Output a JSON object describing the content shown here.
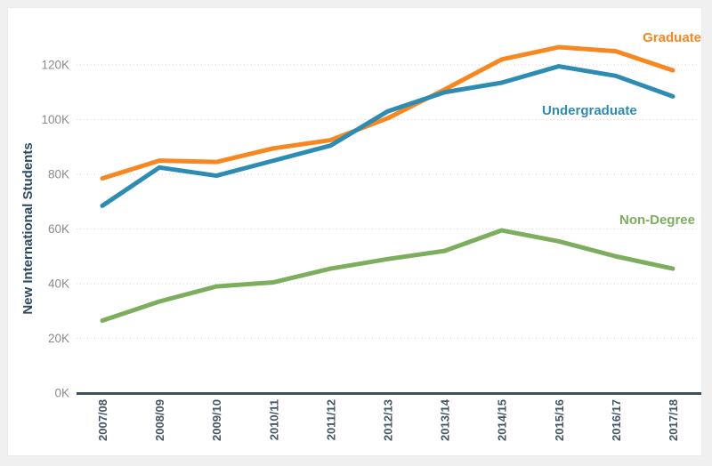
{
  "window": {
    "background": "#f0f0f0",
    "panel_background": "#ffffff"
  },
  "chart_data": {
    "type": "line",
    "title": "",
    "xlabel": "",
    "ylabel": "New International Students",
    "unit": "students",
    "categories": [
      "2007/08",
      "2008/09",
      "2009/10",
      "2010/11",
      "2011/12",
      "2012/13",
      "2013/14",
      "2014/15",
      "2015/16",
      "2016/17",
      "2017/18"
    ],
    "y_ticks": [
      {
        "label": "0K",
        "value": 0
      },
      {
        "label": "20K",
        "value": 20000
      },
      {
        "label": "40K",
        "value": 40000
      },
      {
        "label": "60K",
        "value": 60000
      },
      {
        "label": "80K",
        "value": 80000
      },
      {
        "label": "100K",
        "value": 100000
      },
      {
        "label": "120K",
        "value": 120000
      }
    ],
    "ylim": [
      0,
      130000
    ],
    "grid": {
      "horizontal": true,
      "style": "dotted",
      "color": "#d4d4d4"
    },
    "axis_color": "#3e4e5c",
    "tick_label_color": "#8a8a8a",
    "x_label_color": "#44566a",
    "ylabel_color": "#2e4a62",
    "legend_position": "inline-right-labels",
    "series": [
      {
        "name": "Graduate",
        "color": "#f7871e",
        "values": [
          78500,
          85000,
          84500,
          89500,
          92500,
          100500,
          111000,
          122000,
          126500,
          125000,
          118000
        ]
      },
      {
        "name": "Undergraduate",
        "color": "#2d8cb4",
        "values": [
          68500,
          82500,
          79500,
          85000,
          90500,
          103000,
          110000,
          113500,
          119500,
          116000,
          108500
        ]
      },
      {
        "name": "Non-Degree",
        "color": "#7dae5e",
        "values": [
          26500,
          33500,
          39000,
          40500,
          45500,
          49000,
          52000,
          59500,
          55500,
          50000,
          45500
        ]
      }
    ]
  }
}
